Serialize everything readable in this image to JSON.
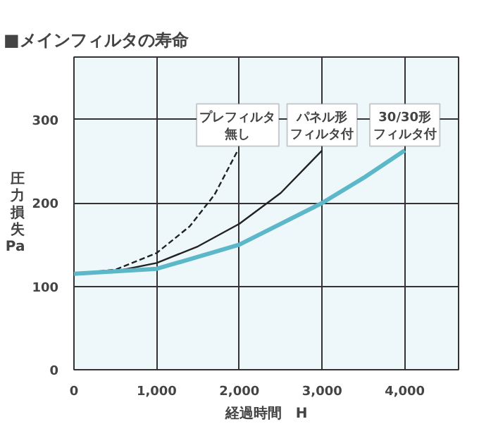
{
  "chart_data": {
    "type": "line",
    "title": "■メインフィルタの寿命",
    "xlabel": "経過時間　H",
    "ylabel": "圧力損失 Pa",
    "xlim": [
      0,
      4650
    ],
    "ylim": [
      0,
      375
    ],
    "xticks": [
      0,
      {
        "value": 1000,
        "label": "1,000"
      },
      {
        "value": 2000,
        "label": "2,000"
      },
      {
        "value": 3000,
        "label": "3,000"
      },
      {
        "value": 4000,
        "label": "4,000"
      }
    ],
    "yticks": [
      0,
      100,
      200,
      300
    ],
    "grid": true,
    "marker": "none",
    "series": [
      {
        "color": "#222222",
        "line_style": "dashed",
        "x": [
          0,
          500,
          1000,
          1400,
          1700,
          1980
        ],
        "values": [
          115,
          120,
          140,
          172,
          210,
          263
        ]
      },
      {
        "color": "#222222",
        "line_style": "solid",
        "x": [
          0,
          500,
          1000,
          1500,
          2000,
          2500,
          3000
        ],
        "values": [
          115,
          118,
          128,
          148,
          175,
          212,
          263
        ]
      },
      {
        "color": "#5cb8c8",
        "line_style": "solid",
        "x": [
          0,
          1000,
          2000,
          3000,
          3500,
          4000
        ],
        "values": [
          115,
          121,
          150,
          200,
          230,
          263
        ]
      }
    ],
    "annotations": [
      {
        "text": "プレフィルタ",
        "x": 1980,
        "y": 263
      },
      {
        "text": "無し",
        "x": 1980,
        "y": 263
      },
      {
        "text": "パネル形",
        "x": 3000,
        "y": 263
      },
      {
        "text": "フィルタ付",
        "x": 3000,
        "y": 263
      },
      {
        "text": "30/30形",
        "x": 4000,
        "y": 263
      },
      {
        "text": "フィルタ付",
        "x": 4000,
        "y": 263
      }
    ]
  }
}
